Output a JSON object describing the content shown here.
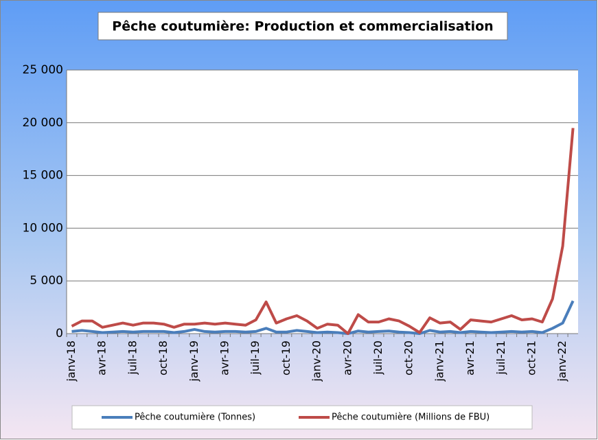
{
  "chart_data": {
    "type": "line",
    "title": "Pêche coutumière: Production et commercialisation",
    "categories": [
      "janv-18",
      null,
      null,
      "avr-18",
      null,
      null,
      "juil-18",
      null,
      null,
      "oct-18",
      null,
      null,
      "janv-19",
      null,
      null,
      "avr-19",
      null,
      null,
      "juil-19",
      null,
      null,
      "oct-19",
      null,
      null,
      "janv-20",
      null,
      null,
      "avr-20",
      null,
      null,
      "juil-20",
      null,
      null,
      "oct-20",
      null,
      null,
      "janv-21",
      null,
      null,
      "avr-21",
      null,
      null,
      "juil-21",
      null,
      null,
      "oct-21",
      null,
      null,
      "janv-22",
      null
    ],
    "series": [
      {
        "name": "Pêche coutumière (Tonnes)",
        "color": "#4a7ebb",
        "values": [
          200,
          300,
          200,
          100,
          150,
          200,
          150,
          200,
          200,
          200,
          100,
          200,
          400,
          200,
          150,
          200,
          200,
          150,
          200,
          500,
          150,
          150,
          300,
          200,
          100,
          150,
          100,
          0,
          250,
          150,
          200,
          250,
          150,
          100,
          0,
          300,
          150,
          200,
          100,
          200,
          150,
          100,
          150,
          200,
          150,
          200,
          100,
          500,
          1000,
          3100
        ]
      },
      {
        "name": "Pêche coutumière (Millions de FBU)",
        "color": "#be4b48",
        "values": [
          700,
          1200,
          1200,
          600,
          800,
          1000,
          800,
          1000,
          1000,
          900,
          600,
          900,
          900,
          1000,
          900,
          1000,
          900,
          800,
          1300,
          3000,
          1000,
          1400,
          1700,
          1200,
          500,
          900,
          800,
          0,
          1800,
          1100,
          1100,
          1400,
          1200,
          700,
          100,
          1500,
          1000,
          1100,
          400,
          1300,
          1200,
          1100,
          1400,
          1700,
          1300,
          1400,
          1100,
          3300,
          8300,
          19500
        ]
      }
    ],
    "ylim": [
      0,
      25000
    ],
    "yticks": [
      0,
      {
        "value": 5000,
        "label": "5 000"
      },
      {
        "value": 10000,
        "label": "10 000"
      },
      {
        "value": 15000,
        "label": "15 000"
      },
      {
        "value": 20000,
        "label": "20 000"
      },
      {
        "value": 25000,
        "label": "25 000"
      }
    ],
    "grid": true,
    "legend": "bottom"
  }
}
